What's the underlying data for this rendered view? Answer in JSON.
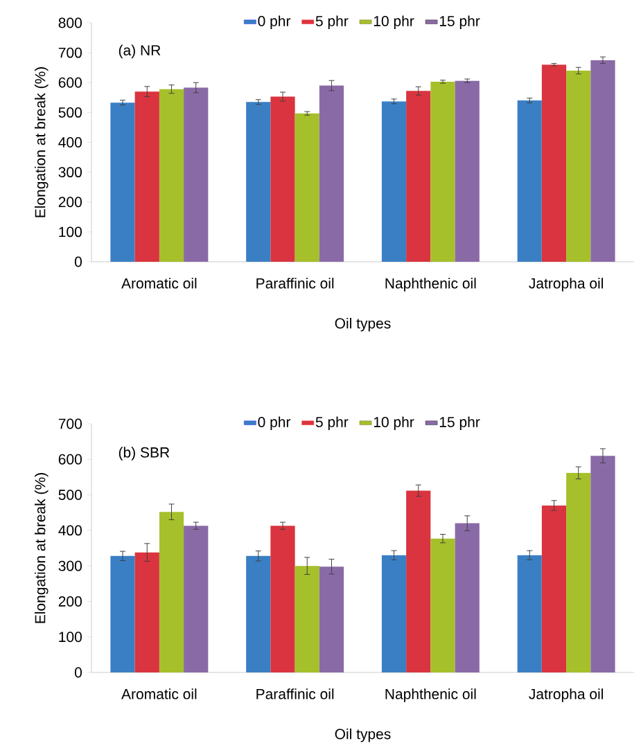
{
  "chart_data": [
    {
      "type": "bar",
      "annotations": [
        "(a) NR"
      ],
      "xlabel": "Oil types",
      "ylabel": "Elongation at break (%)",
      "categories": [
        "Aromatic oil",
        "Paraffinic oil",
        "Naphthenic oil",
        "Jatropha oil"
      ],
      "series": [
        {
          "name": "0 phr",
          "color": "#3a7fc4",
          "values": [
            533,
            535,
            537,
            540
          ],
          "errors": [
            8,
            8,
            8,
            8
          ]
        },
        {
          "name": "5 phr",
          "color": "#d9343f",
          "values": [
            570,
            553,
            572,
            660
          ],
          "errors": [
            17,
            15,
            14,
            4
          ]
        },
        {
          "name": "10 phr",
          "color": "#a5c02a",
          "values": [
            578,
            497,
            603,
            640
          ],
          "errors": [
            14,
            6,
            5,
            11
          ]
        },
        {
          "name": "15 phr",
          "color": "#8a6aa6",
          "values": [
            583,
            590,
            606,
            675
          ],
          "errors": [
            17,
            17,
            6,
            11
          ]
        }
      ],
      "ylim": [
        0,
        800
      ],
      "yticks": [
        0,
        100,
        200,
        300,
        400,
        500,
        600,
        700,
        800
      ],
      "legend": "top"
    },
    {
      "type": "bar",
      "annotations": [
        "(b) SBR"
      ],
      "xlabel": "Oil types",
      "ylabel": "Elongation at break (%)",
      "categories": [
        "Aromatic oil",
        "Paraffinic oil",
        "Naphthenic oil",
        "Jatropha oil"
      ],
      "series": [
        {
          "name": "0 phr",
          "color": "#3a7fc4",
          "values": [
            328,
            328,
            330,
            330
          ],
          "errors": [
            13,
            14,
            13,
            13
          ]
        },
        {
          "name": "5 phr",
          "color": "#d9343f",
          "values": [
            338,
            413,
            512,
            470
          ],
          "errors": [
            25,
            10,
            16,
            14
          ]
        },
        {
          "name": "10 phr",
          "color": "#a5c02a",
          "values": [
            452,
            300,
            377,
            562
          ],
          "errors": [
            22,
            24,
            12,
            17
          ]
        },
        {
          "name": "15 phr",
          "color": "#8a6aa6",
          "values": [
            413,
            298,
            420,
            610
          ],
          "errors": [
            10,
            21,
            21,
            20
          ]
        }
      ],
      "ylim": [
        0,
        700
      ],
      "yticks": [
        0,
        100,
        200,
        300,
        400,
        500,
        600,
        700
      ],
      "legend": "top"
    }
  ]
}
